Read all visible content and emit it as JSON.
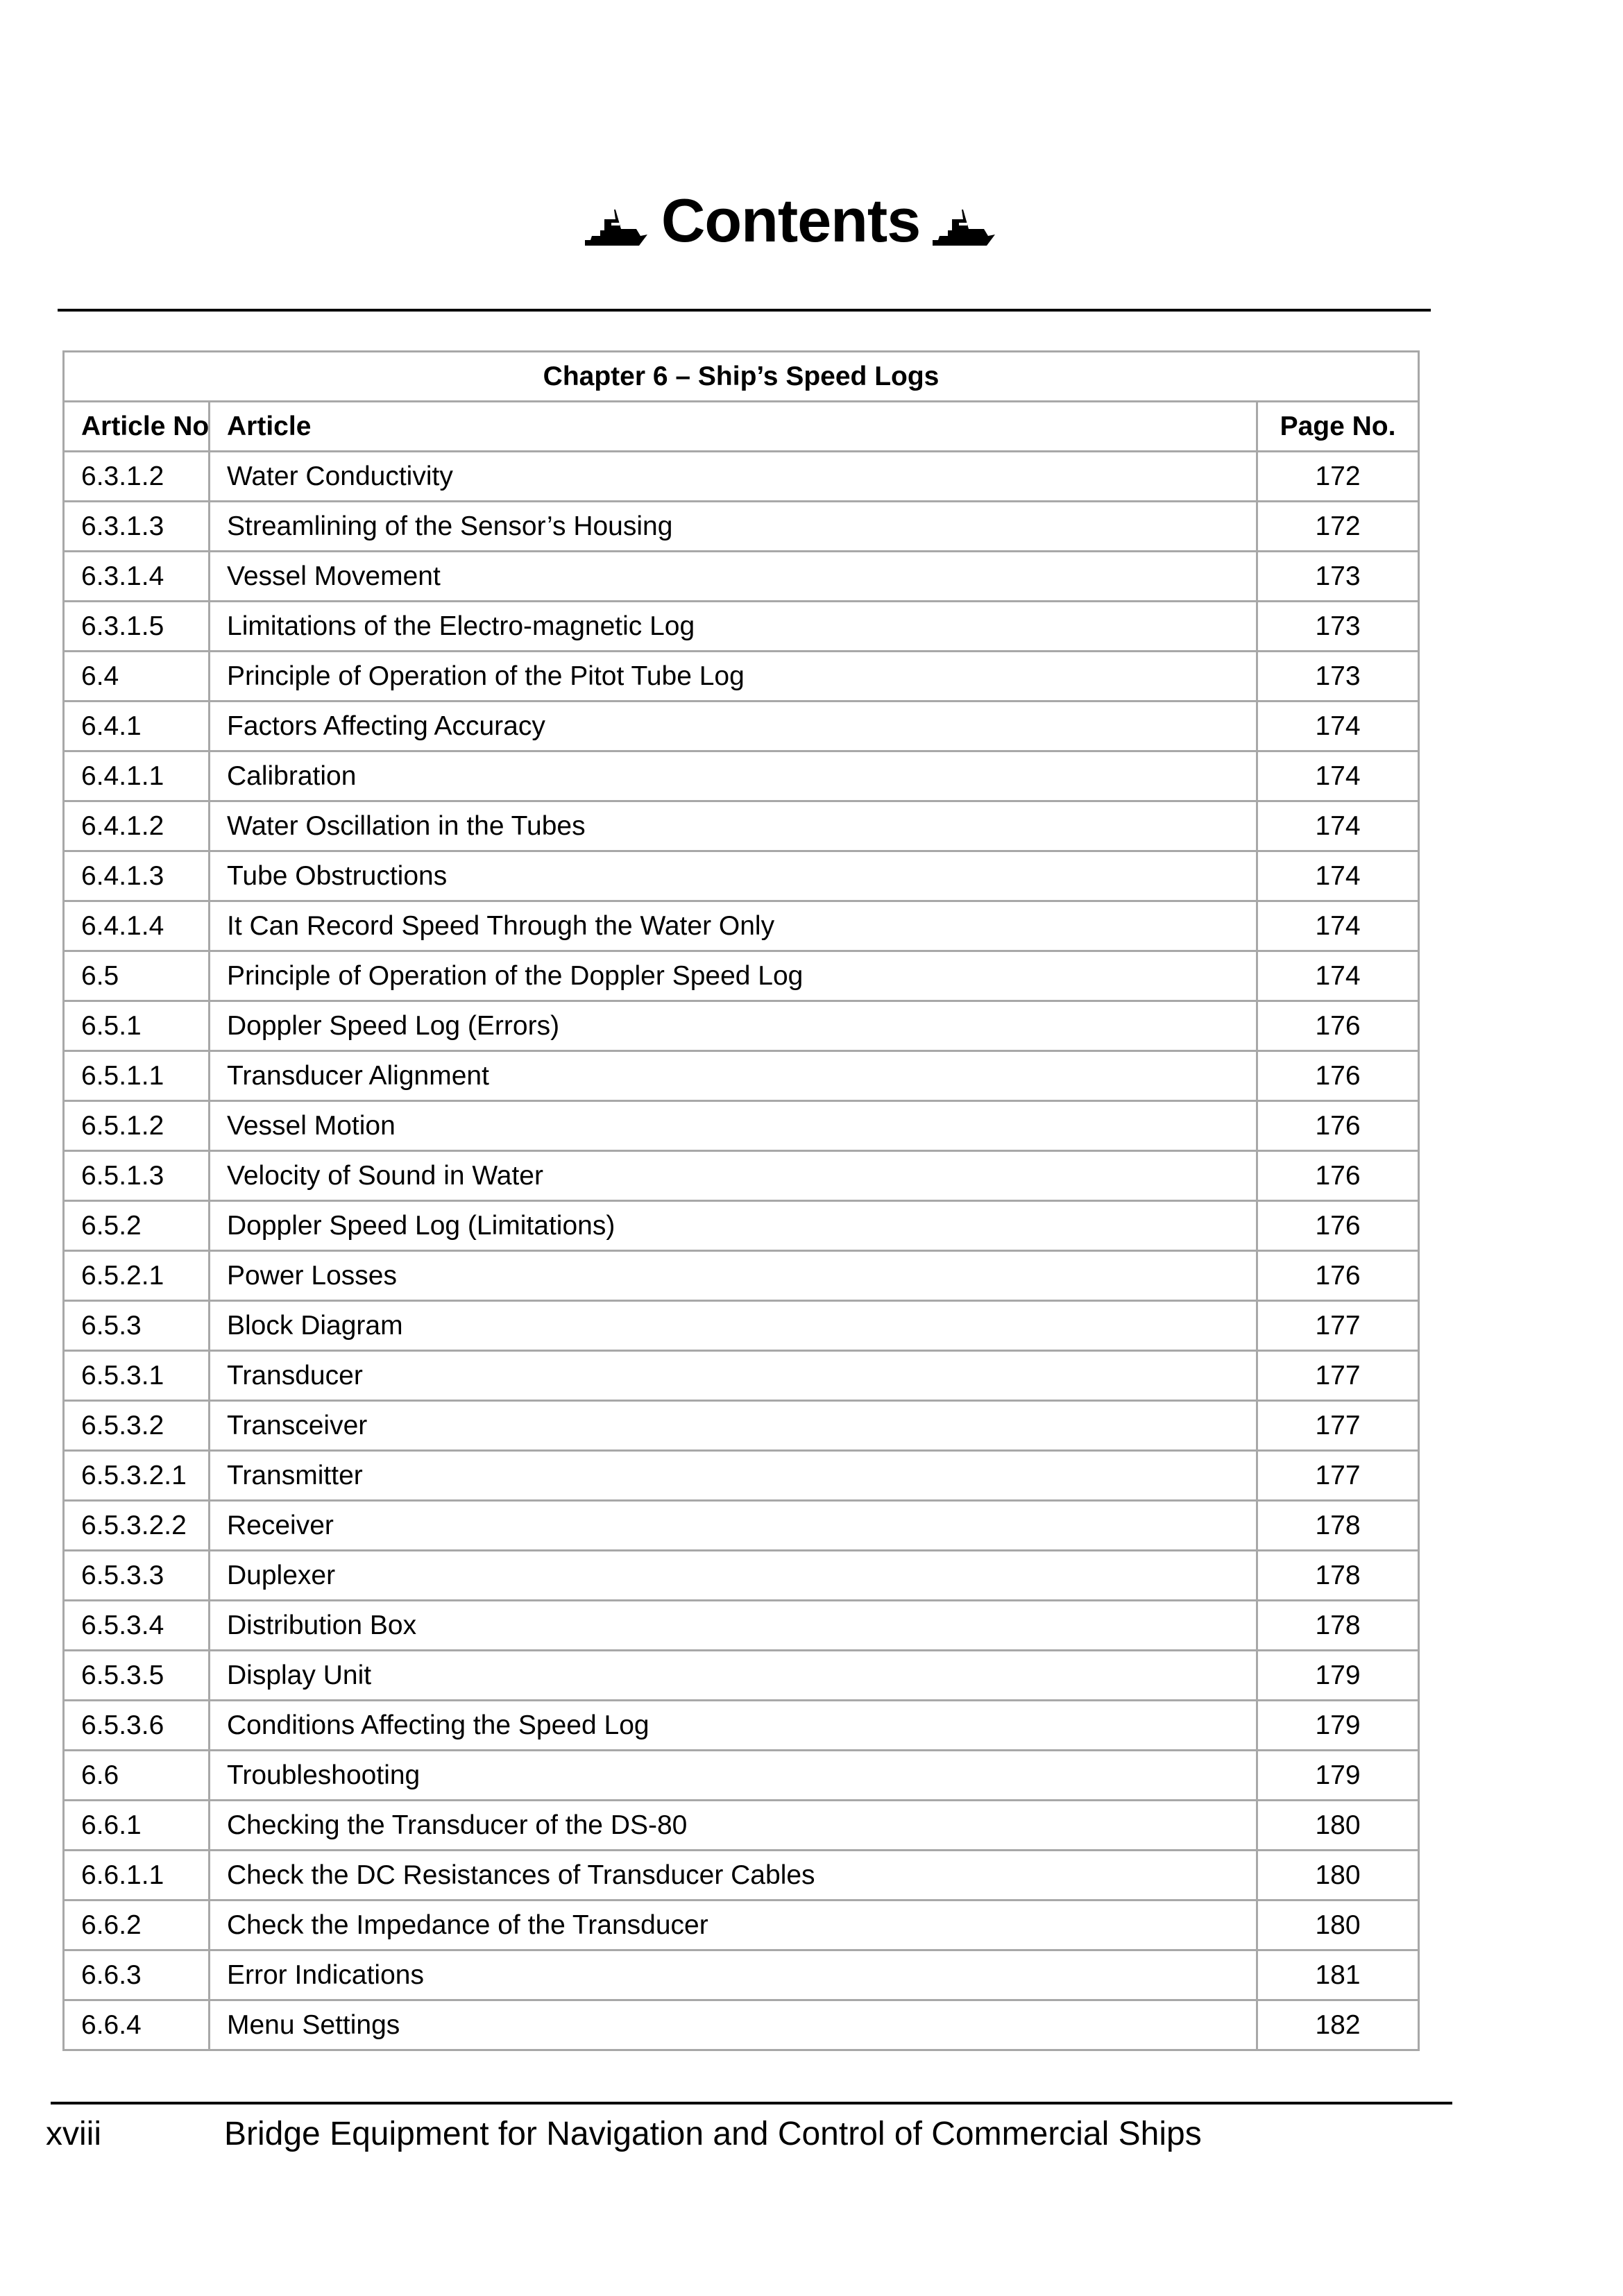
{
  "header": {
    "title": "Contents",
    "icon": "ship-icon"
  },
  "table": {
    "chapter": "Chapter 6 – Ship’s Speed Logs",
    "columns": [
      "Article No.",
      "Article",
      "Page No."
    ],
    "rows": [
      [
        "6.3.1.2",
        "Water Conductivity",
        "172"
      ],
      [
        "6.3.1.3",
        "Streamlining of the Sensor’s Housing",
        "172"
      ],
      [
        "6.3.1.4",
        "Vessel Movement",
        "173"
      ],
      [
        "6.3.1.5",
        "Limitations of the Electro-magnetic Log",
        "173"
      ],
      [
        "6.4",
        "Principle of Operation of the Pitot Tube Log",
        "173"
      ],
      [
        "6.4.1",
        "Factors Affecting Accuracy",
        "174"
      ],
      [
        "6.4.1.1",
        "Calibration",
        "174"
      ],
      [
        "6.4.1.2",
        "Water Oscillation in the Tubes",
        "174"
      ],
      [
        "6.4.1.3",
        "Tube Obstructions",
        "174"
      ],
      [
        "6.4.1.4",
        "It Can Record Speed Through the Water Only",
        "174"
      ],
      [
        "6.5",
        "Principle of Operation of the Doppler Speed Log",
        "174"
      ],
      [
        "6.5.1",
        "Doppler Speed Log (Errors)",
        "176"
      ],
      [
        "6.5.1.1",
        "Transducer Alignment",
        "176"
      ],
      [
        "6.5.1.2",
        "Vessel Motion",
        "176"
      ],
      [
        "6.5.1.3",
        "Velocity of Sound in Water",
        "176"
      ],
      [
        "6.5.2",
        "Doppler Speed Log (Limitations)",
        "176"
      ],
      [
        "6.5.2.1",
        "Power Losses",
        "176"
      ],
      [
        "6.5.3",
        "Block Diagram",
        "177"
      ],
      [
        "6.5.3.1",
        "Transducer",
        "177"
      ],
      [
        "6.5.3.2",
        "Transceiver",
        "177"
      ],
      [
        "6.5.3.2.1",
        "Transmitter",
        "177"
      ],
      [
        "6.5.3.2.2",
        "Receiver",
        "178"
      ],
      [
        "6.5.3.3",
        "Duplexer",
        "178"
      ],
      [
        "6.5.3.4",
        "Distribution Box",
        "178"
      ],
      [
        "6.5.3.5",
        "Display Unit",
        "179"
      ],
      [
        "6.5.3.6",
        "Conditions Affecting the Speed Log",
        "179"
      ],
      [
        "6.6",
        "Troubleshooting",
        "179"
      ],
      [
        "6.6.1",
        "Checking the Transducer of the DS-80",
        "180"
      ],
      [
        "6.6.1.1",
        "Check the DC Resistances of Transducer Cables",
        "180"
      ],
      [
        "6.6.2",
        "Check the Impedance of the Transducer",
        "180"
      ],
      [
        "6.6.3",
        "Error Indications",
        "181"
      ],
      [
        "6.6.4",
        "Menu Settings",
        "182"
      ]
    ]
  },
  "footer": {
    "page_number": "xviii",
    "book_title": "Bridge Equipment for Navigation and Control of Commercial Ships"
  },
  "colors": {
    "table_border": "#a8a8a8",
    "text": "#000000"
  }
}
